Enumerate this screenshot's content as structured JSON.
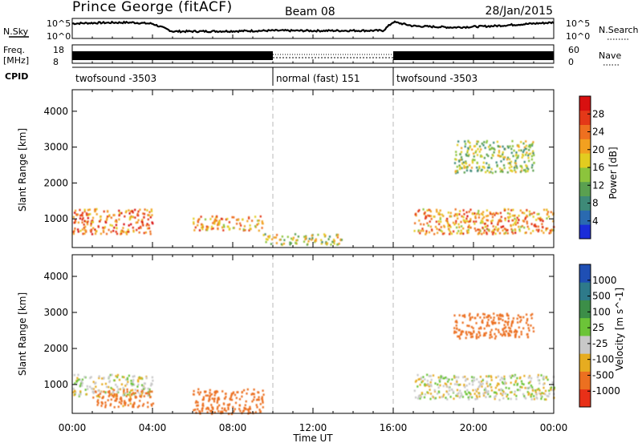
{
  "header": {
    "station": "Prince George (fitACF)",
    "beam": "Beam 08",
    "date": "28/Jan/2015"
  },
  "strips": {
    "nsky": {
      "label": "N.Sky",
      "ticks": [
        "10^5",
        "10^0"
      ]
    },
    "nsearch": {
      "label": "N.Search",
      "ticks": [
        "10^5",
        "10^0"
      ]
    },
    "freq": {
      "label_top": "Freq.",
      "label_bottom": "[MHz]",
      "ticks": [
        "18",
        "8"
      ]
    },
    "nave": {
      "label": "Nave",
      "ticks": [
        "60",
        "0"
      ]
    },
    "cpid": {
      "label": "CPID"
    },
    "modes": [
      {
        "name": "twofsound -3503",
        "start_h": 0,
        "end_h": 10
      },
      {
        "name": "normal (fast) 151",
        "start_h": 10,
        "end_h": 16
      },
      {
        "name": "twofsound -3503",
        "start_h": 16,
        "end_h": 24
      }
    ]
  },
  "axes": {
    "ylabel": "Slant Range [km]",
    "xlabel": "Time UT",
    "yticks": [
      "1000",
      "2000",
      "3000",
      "4000"
    ],
    "xticks": [
      "00:00",
      "04:00",
      "08:00",
      "12:00",
      "16:00",
      "20:00",
      "00:00"
    ]
  },
  "colorbars": {
    "power": {
      "label": "Power [dB]",
      "ticks": [
        "4",
        "8",
        "12",
        "16",
        "20",
        "24",
        "28"
      ],
      "colors": [
        "#1a2cd8",
        "#2a6ab0",
        "#3e8a78",
        "#5aa050",
        "#8cc43c",
        "#e2cc20",
        "#f2a020",
        "#ee7020",
        "#e43818",
        "#d81010"
      ]
    },
    "velocity": {
      "label": "Velocity [m s^-1]",
      "ticks": [
        "1000",
        "500",
        "100",
        "25",
        "-25",
        "-100",
        "-500",
        "-1000"
      ],
      "colors": [
        "#1f4fb4",
        "#2e7a8a",
        "#3c8e48",
        "#6cc438",
        "#c8c8c8",
        "#e6ac20",
        "#ec7020",
        "#e83018"
      ]
    }
  },
  "chart_data": [
    {
      "type": "line",
      "title": "N.Sky",
      "x_unit": "hours UT",
      "series": [
        {
          "x": [
            0,
            1,
            2,
            3,
            4,
            5,
            6,
            8,
            10,
            12,
            14,
            15.5,
            16,
            17,
            19,
            21,
            23,
            24
          ],
          "values": [
            10000,
            15000,
            18000,
            20000,
            9000,
            60,
            60,
            70,
            100,
            90,
            100,
            100,
            30000,
            2000,
            800,
            2000,
            10000,
            20000
          ]
        }
      ],
      "ylim": [
        1,
        100000
      ],
      "yscale": "log"
    },
    {
      "type": "area",
      "title": "Freq. [MHz]",
      "series": [
        {
          "x": [
            0,
            10,
            10,
            16,
            16,
            24
          ],
          "values": [
            11,
            11,
            10.5,
            10.5,
            11,
            11
          ]
        }
      ],
      "ylim": [
        8,
        18
      ]
    },
    {
      "type": "heatmap",
      "title": "Power [dB]",
      "xlabel": "Time UT",
      "ylabel": "Slant Range [km]",
      "xlim": [
        0,
        24
      ],
      "ylim": [
        200,
        4600
      ],
      "features": [
        {
          "t": [
            0,
            4
          ],
          "range": [
            600,
            1300
          ],
          "power_db": 24
        },
        {
          "t": [
            6,
            9.5
          ],
          "range": [
            700,
            1100
          ],
          "power_db": 22
        },
        {
          "t": [
            9.5,
            13.5
          ],
          "range": [
            300,
            600
          ],
          "power_db": 16
        },
        {
          "t": [
            17,
            24
          ],
          "range": [
            600,
            1300
          ],
          "power_db": 22
        },
        {
          "t": [
            19,
            23
          ],
          "range": [
            2300,
            3200
          ],
          "power_db": 14
        }
      ]
    },
    {
      "type": "heatmap",
      "title": "Velocity [m s^-1]",
      "xlabel": "Time UT",
      "ylabel": "Slant Range [km]",
      "xlim": [
        0,
        24
      ],
      "ylim": [
        200,
        4600
      ],
      "features": [
        {
          "t": [
            0,
            4
          ],
          "range": [
            700,
            1300
          ],
          "velocity": 0
        },
        {
          "t": [
            1,
            4
          ],
          "range": [
            400,
            900
          ],
          "velocity": -150
        },
        {
          "t": [
            6,
            9.5
          ],
          "range": [
            200,
            900
          ],
          "velocity": -250
        },
        {
          "t": [
            17,
            24
          ],
          "range": [
            600,
            1300
          ],
          "velocity": 0
        },
        {
          "t": [
            19,
            23
          ],
          "range": [
            2300,
            3000
          ],
          "velocity": -300
        }
      ]
    }
  ]
}
